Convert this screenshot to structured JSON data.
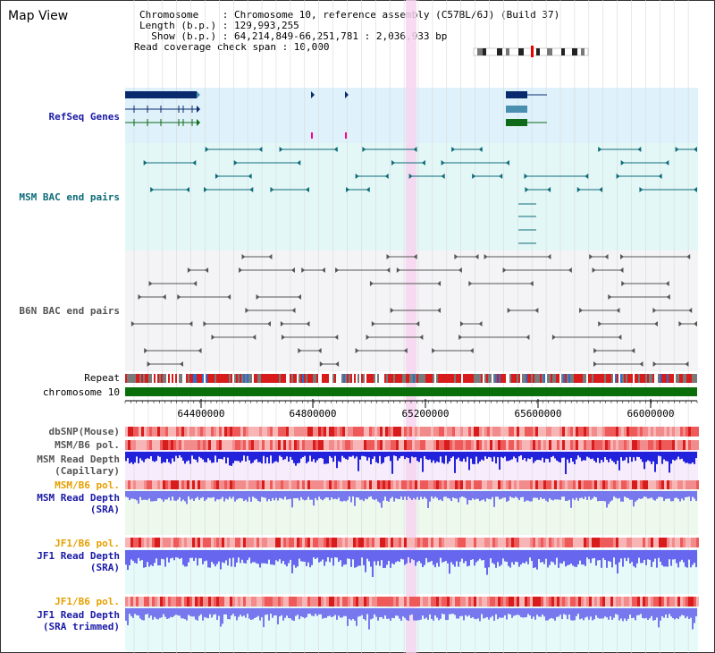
{
  "header": {
    "title": "Map View",
    "chromosome_line": "Chromosome    : Chromosome 10, reference assembly (C57BL/6J) (Build 37)",
    "length_line": "Length (b.p.) : 129,993,255",
    "show_line": "  Show (b.p.) : 64,214,849-66,251,781 : 2,036,933 bp",
    "coverage_line": "Read coverage check span : 10,000"
  },
  "tracks": {
    "refseq": "RefSeq Genes",
    "msm_bac": "MSM BAC end pairs",
    "b6n_bac": "B6N BAC end pairs",
    "repeat": "Repeat",
    "chromosome": "chromosome 10",
    "dbsnp": "dbSNP(Mouse)",
    "msm_b6_pol": "MSM/B6 pol.",
    "msm_depth_cap_1": "MSM Read Depth",
    "msm_depth_cap_2": "(Capillary)",
    "msm_b6_pol_2": "MSM/B6 pol.",
    "msm_depth_sra_1": "MSM Read Depth",
    "msm_depth_sra_2": "(SRA)",
    "jf1_b6_pol": "JF1/B6 pol.",
    "jf1_depth_sra_1": "JF1 Read Depth",
    "jf1_depth_sra_2": "(SRA)",
    "jf1_b6_pol_2": "JF1/B6 pol.",
    "jf1_depth_trim_1": "JF1 Read Depth",
    "jf1_depth_trim_2": "(SRA trimmed)"
  },
  "axis": {
    "ticks": [
      "64400000",
      "64800000",
      "65200000",
      "65600000",
      "66000000"
    ]
  },
  "colors": {
    "refseq_dark": "#0a2a6e",
    "refseq_mid": "#4a8fb0",
    "refseq_green": "#0f6b1a",
    "bac_teal": "#0d6b78",
    "bac_gray": "#555555",
    "chromosome_green": "#0a6e0a",
    "highlight": "#f7d5f0",
    "depth_blue": "#2222dd",
    "depth_light": "#7777ee"
  }
}
